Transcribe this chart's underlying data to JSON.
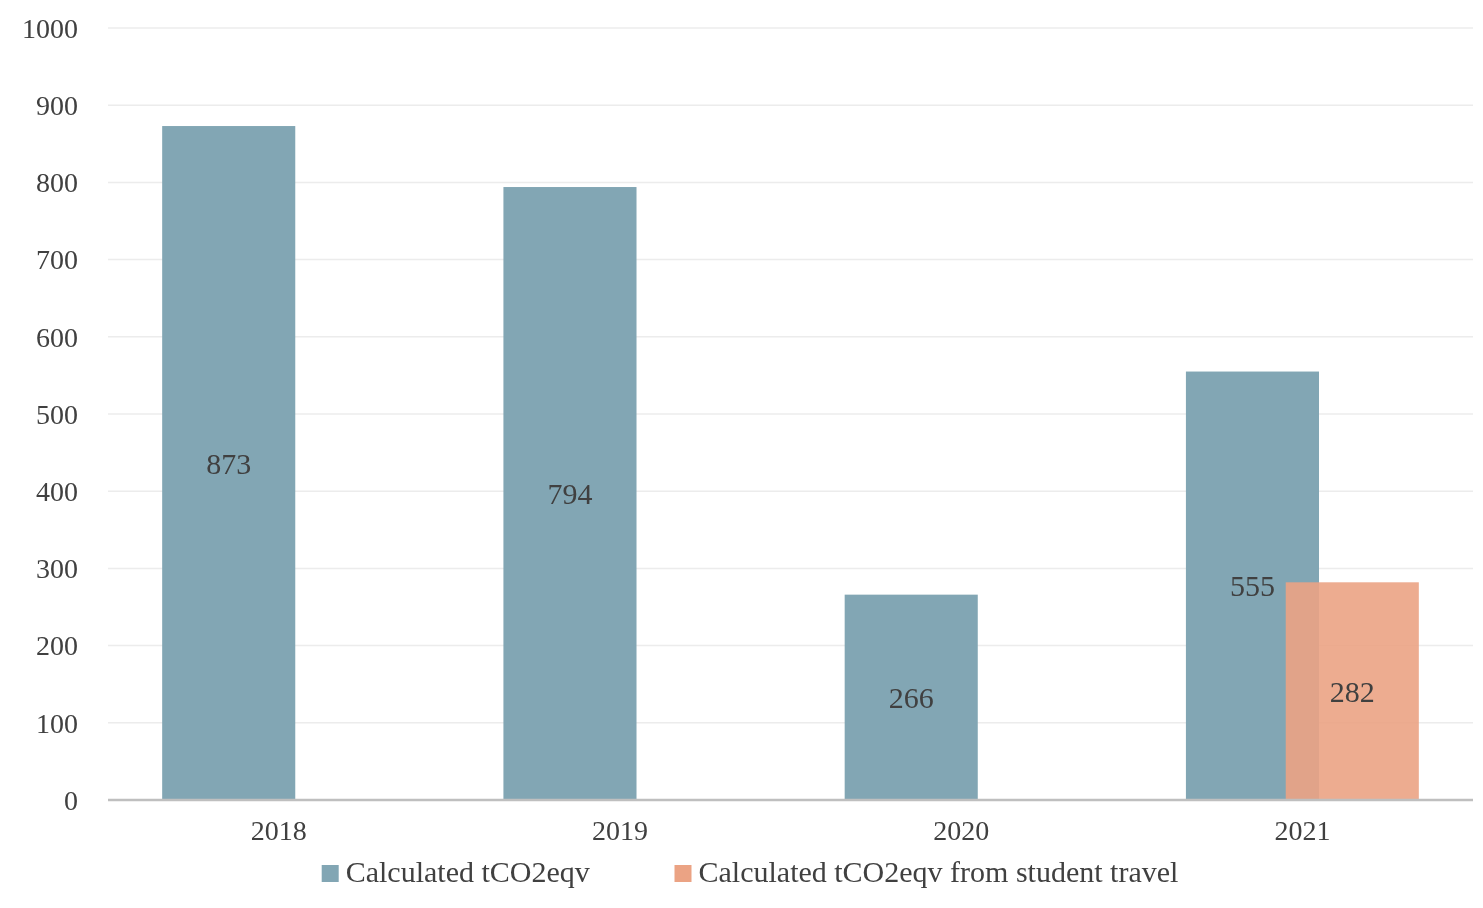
{
  "chart_data": {
    "type": "bar",
    "categories": [
      "2018",
      "2019",
      "2020",
      "2021"
    ],
    "series": [
      {
        "name": "Calculated tCO2eqv",
        "color": "#82a6b4",
        "values": [
          873,
          794,
          266,
          555
        ]
      },
      {
        "name": "Calculated tCO2eqv from student travel",
        "color": "#eba384",
        "values": [
          null,
          null,
          null,
          282
        ]
      }
    ],
    "ylim": [
      0,
      1000
    ],
    "yticks": [
      0,
      100,
      200,
      300,
      400,
      500,
      600,
      700,
      800,
      900,
      1000
    ],
    "grid": "y",
    "legend": "bottom",
    "data_labels": true
  }
}
